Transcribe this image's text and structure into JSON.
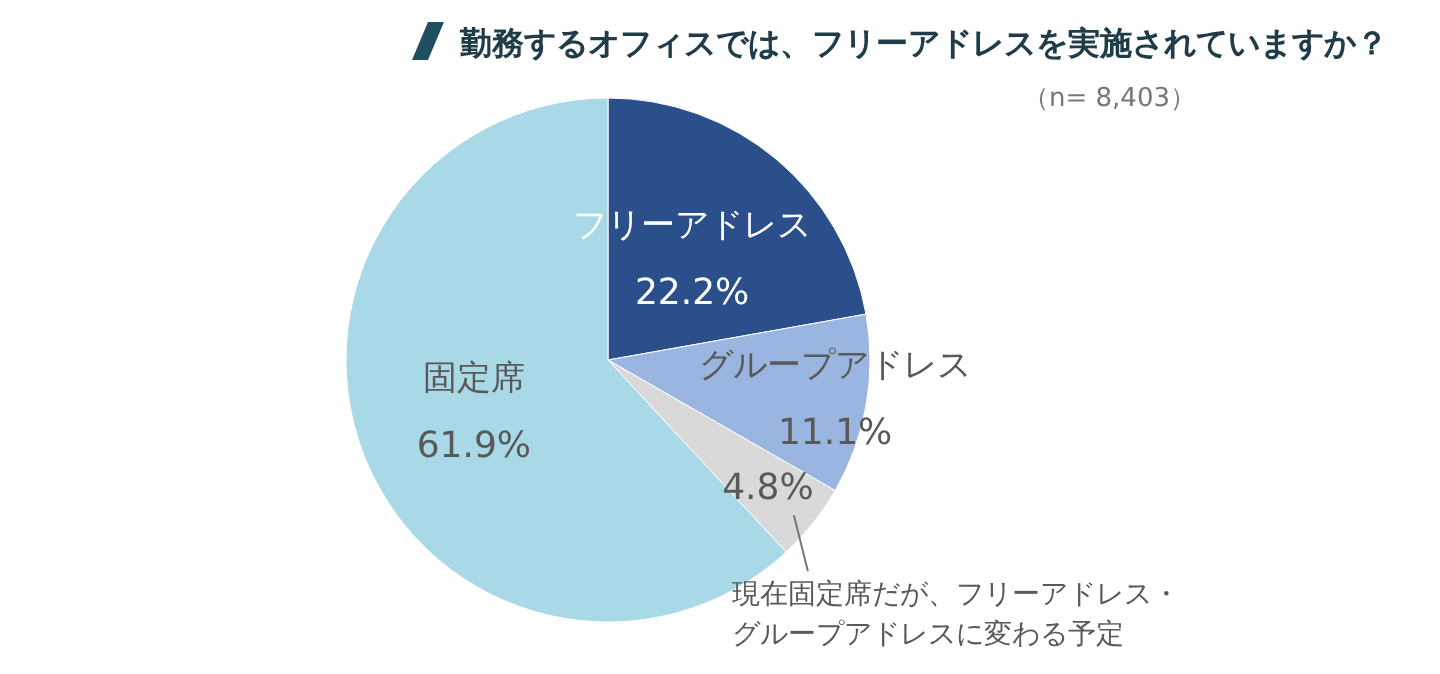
{
  "chart_data": {
    "type": "pie",
    "title": "勤務するオフィスでは、フリーアドレスを実施されていますか？",
    "subtitle": "（n= 8,403）",
    "categories": [
      "フリーアドレス",
      "グループアドレス",
      "現在固定席だが、フリーアドレス・グループアドレスに変わる予定",
      "固定席"
    ],
    "values": [
      22.2,
      11.1,
      4.8,
      61.9
    ],
    "value_labels": [
      "22.2%",
      "11.1%",
      "4.8%",
      "61.9%"
    ],
    "colors": [
      "#2b4f8a",
      "#9ab5e0",
      "#d9d9d9",
      "#a9d8e6"
    ]
  }
}
